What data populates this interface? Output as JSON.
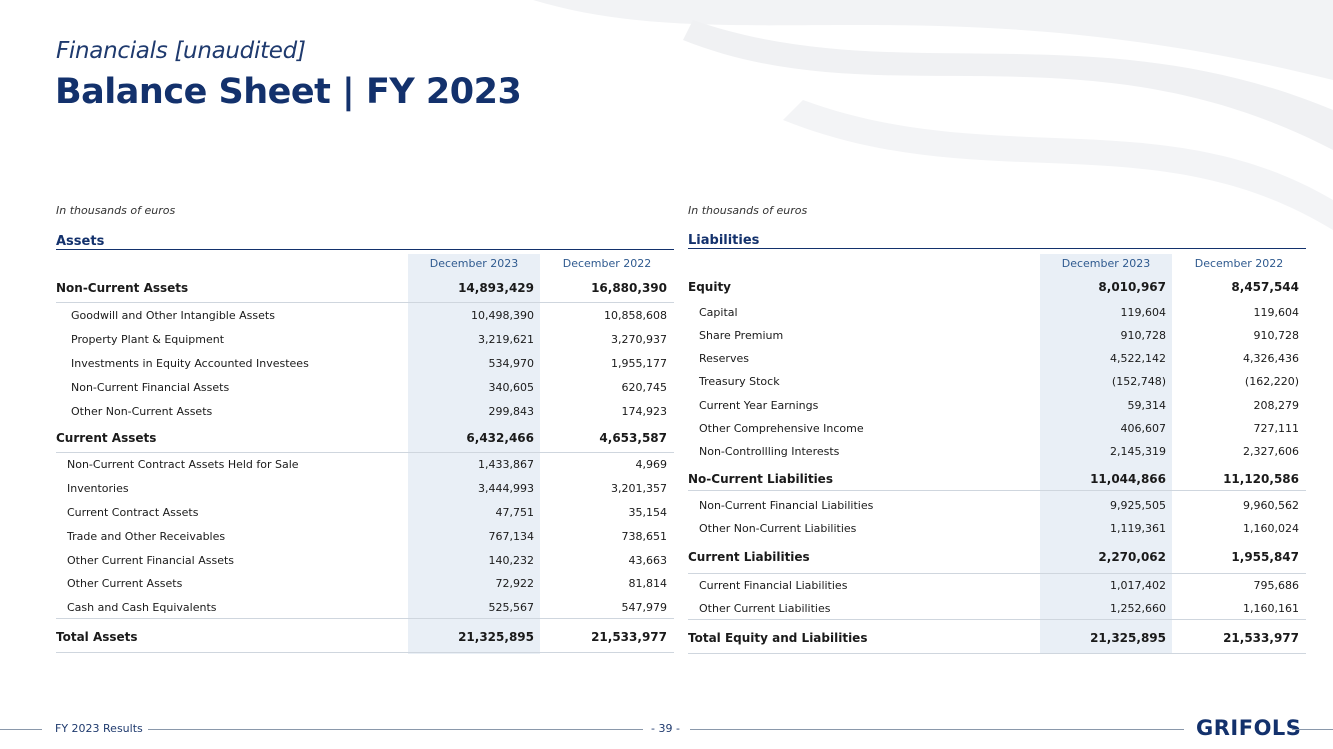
{
  "header": {
    "subtitle": "Financials [unaudited]",
    "title": "Balance Sheet | FY 2023"
  },
  "assets": {
    "unit": "In thousands of euros",
    "section_title": "Assets",
    "col1": "December 2023",
    "col2": "December 2022",
    "rows": [
      {
        "label": "Non-Current Assets",
        "v1": "14,893,429",
        "v2": "16,880,390",
        "bold": true
      },
      {
        "label": "Goodwill and Other Intangible Assets",
        "v1": "10,498,390",
        "v2": "10,858,608"
      },
      {
        "label": "Property Plant & Equipment",
        "v1": "3,219,621",
        "v2": "3,270,937"
      },
      {
        "label": "Investments in Equity Accounted Investees",
        "v1": "534,970",
        "v2": "1,955,177"
      },
      {
        "label": "Non-Current Financial Assets",
        "v1": "340,605",
        "v2": "620,745"
      },
      {
        "label": "Other Non-Current Assets",
        "v1": "299,843",
        "v2": "174,923"
      },
      {
        "label": "Current Assets",
        "v1": "6,432,466",
        "v2": "4,653,587",
        "bold": true
      },
      {
        "label": "Non-Current Contract Assets Held for Sale",
        "v1": "1,433,867",
        "v2": "4,969"
      },
      {
        "label": "Inventories",
        "v1": "3,444,993",
        "v2": "3,201,357"
      },
      {
        "label": "Current Contract Assets",
        "v1": "47,751",
        "v2": "35,154"
      },
      {
        "label": "Trade and Other Receivables",
        "v1": "767,134",
        "v2": "738,651"
      },
      {
        "label": "Other Current Financial Assets",
        "v1": "140,232",
        "v2": "43,663"
      },
      {
        "label": "Other Current Assets",
        "v1": "72,922",
        "v2": "81,814"
      },
      {
        "label": "Cash and Cash Equivalents",
        "v1": "525,567",
        "v2": "547,979"
      },
      {
        "label": "Total Assets",
        "v1": "21,325,895",
        "v2": "21,533,977",
        "bold": true
      }
    ]
  },
  "liabilities": {
    "unit": "In thousands of euros",
    "section_title": "Liabilities",
    "col1": "December 2023",
    "col2": "December 2022",
    "rows": [
      {
        "label": "Equity",
        "v1": "8,010,967",
        "v2": "8,457,544",
        "bold": true
      },
      {
        "label": "Capital",
        "v1": "119,604",
        "v2": "119,604"
      },
      {
        "label": "Share Premium",
        "v1": "910,728",
        "v2": "910,728"
      },
      {
        "label": "Reserves",
        "v1": "4,522,142",
        "v2": "4,326,436"
      },
      {
        "label": "Treasury Stock",
        "v1": "(152,748)",
        "v2": "(162,220)"
      },
      {
        "label": "Current Year Earnings",
        "v1": "59,314",
        "v2": "208,279"
      },
      {
        "label": "Other Comprehensive Income",
        "v1": "406,607",
        "v2": "727,111"
      },
      {
        "label": "Non-Controllling Interests",
        "v1": "2,145,319",
        "v2": "2,327,606"
      },
      {
        "label": "No-Current Liabilities",
        "v1": "11,044,866",
        "v2": "11,120,586",
        "bold": true
      },
      {
        "label": "Non-Current Financial Liabilities",
        "v1": "9,925,505",
        "v2": "9,960,562"
      },
      {
        "label": "Other Non-Current Liabilities",
        "v1": "1,119,361",
        "v2": "1,160,024"
      },
      {
        "label": "Current Liabilities",
        "v1": "2,270,062",
        "v2": "1,955,847",
        "bold": true
      },
      {
        "label": "Current Financial Liabilities",
        "v1": "1,017,402",
        "v2": "795,686"
      },
      {
        "label": "Other Current Liabilities",
        "v1": "1,252,660",
        "v2": "1,160,161"
      },
      {
        "label": "Total Equity and Liabilities",
        "v1": "21,325,895",
        "v2": "21,533,977",
        "bold": true
      }
    ]
  },
  "footer": {
    "left": "FY 2023 Results",
    "page": "- 39 -",
    "logo": "GRIFOLS"
  }
}
